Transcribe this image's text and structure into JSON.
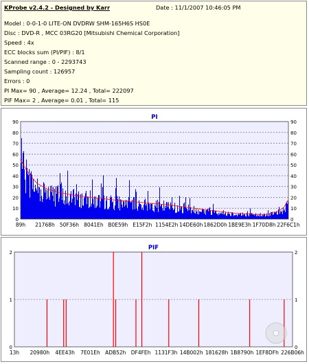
{
  "header": {
    "title": "KProbe v2.4.2 - Designed by Karr",
    "date": "Date : 11/1/2007 10:46:05 PM"
  },
  "info_lines": [
    "Model : 0-0-1-0 LITE-ON DVDRW SHM-165H6S HS0E",
    "Disc : DVD-R , MCC 03RG20  [Mitsubishi Chemical Corporation]",
    "Speed : 4x",
    "ECC blocks sum (PI/PIF) : 8/1",
    "Scanned range : 0 - 2293743",
    "Sampling count : 126957",
    "Errors : 0",
    "PI Max= 90 , Average= 12.24 , Total= 222097",
    "PIF Max= 2 , Average= 0.01 , Total= 115"
  ],
  "colors": {
    "pi_fill": "#0000ee",
    "pi_max_line": "#ff0000",
    "pif_bar": "#ff0000",
    "plot_bg": "#eeeeff",
    "grid": "#555555",
    "title": "#0000cc"
  },
  "chart_data": [
    {
      "type": "area",
      "title": "PI",
      "ylim": [
        0,
        90
      ],
      "y_ticks": [
        "0",
        "10",
        "20",
        "30",
        "40",
        "50",
        "60",
        "70",
        "80",
        "90"
      ],
      "x_tick_labels": [
        "89h",
        "21768h",
        "50F36h",
        "8041Eh",
        "B0E59h",
        "E15F2h",
        "1154E2h",
        "14DE60h",
        "1862D0h",
        "1BE9E3h",
        "1F70D8h",
        "22F6C1h"
      ],
      "x_range": [
        0,
        2293743
      ],
      "profile_x": [
        0,
        0.01,
        0.03,
        0.06,
        0.1,
        0.15,
        0.2,
        0.27,
        0.35,
        0.45,
        0.55,
        0.65,
        0.72,
        0.8,
        0.87,
        0.92,
        0.96,
        0.985,
        1.0
      ],
      "profile_avg": [
        50,
        45,
        38,
        30,
        25,
        22,
        20,
        18,
        16,
        14,
        12,
        9,
        7,
        5,
        4,
        4,
        6,
        10,
        16
      ],
      "profile_peak": [
        90,
        80,
        65,
        55,
        50,
        48,
        46,
        44,
        40,
        34,
        28,
        22,
        16,
        12,
        10,
        10,
        14,
        20,
        28
      ]
    },
    {
      "type": "bar",
      "title": "PIF",
      "ylim": [
        0,
        2
      ],
      "y_ticks": [
        "0",
        "1",
        "2"
      ],
      "x_tick_labels": [
        "13h",
        "20980h",
        "4EE43h",
        "7E01Eh",
        "ADB52h",
        "DF4FEh",
        "1131F3h",
        "14B002h",
        "181628h",
        "1B8790h",
        "1EF8DFh",
        "226B06h"
      ],
      "x_range": [
        0,
        2293743
      ],
      "events_frac": [
        0.117,
        0.177,
        0.186,
        0.356,
        0.364,
        0.437,
        0.458,
        0.555,
        0.663,
        0.846,
        0.97
      ],
      "events_value": [
        1,
        1,
        1,
        2,
        1,
        1,
        2,
        1,
        1,
        1,
        1
      ]
    }
  ]
}
